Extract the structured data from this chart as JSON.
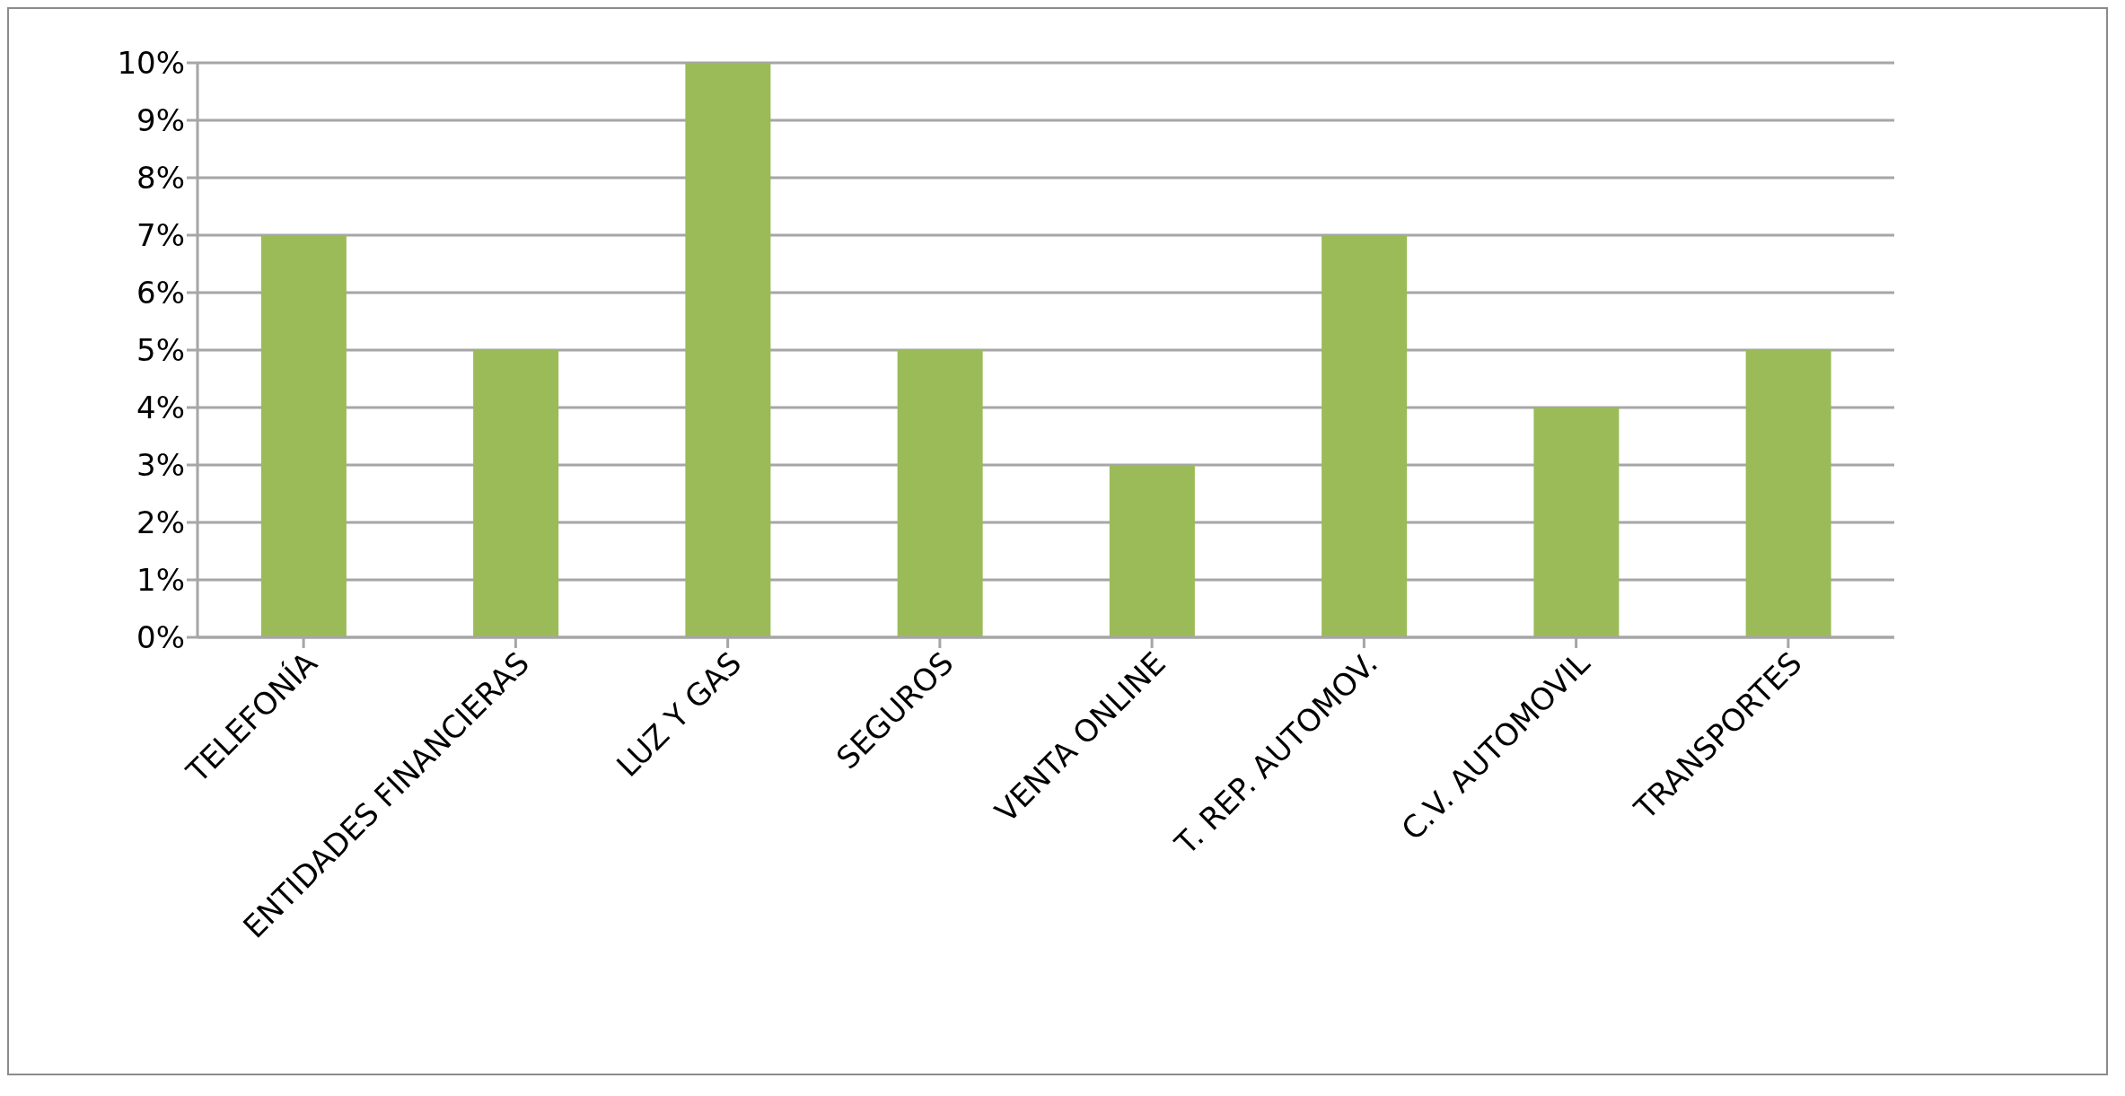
{
  "chart_data": {
    "type": "bar",
    "categories": [
      "TELEFONÍA",
      "ENTIDADES FINANCIERAS",
      "LUZ Y GAS",
      "SEGUROS",
      "VENTA ONLINE",
      "T. REP. AUTOMOV.",
      "C.V. AUTOMOVIL",
      "TRANSPORTES"
    ],
    "values": [
      7,
      5,
      10,
      5,
      3,
      7,
      4,
      5
    ],
    "color": "#9bbb59",
    "ylim": [
      0,
      10
    ],
    "yticks": [
      {
        "value": 0,
        "label": "0%"
      },
      {
        "value": 1,
        "label": "1%"
      },
      {
        "value": 2,
        "label": "2%"
      },
      {
        "value": 3,
        "label": "3%"
      },
      {
        "value": 4,
        "label": "4%"
      },
      {
        "value": 5,
        "label": "5%"
      },
      {
        "value": 6,
        "label": "6%"
      },
      {
        "value": 7,
        "label": "7%"
      },
      {
        "value": 8,
        "label": "8%"
      },
      {
        "value": 9,
        "label": "9%"
      },
      {
        "value": 10,
        "label": "10%"
      }
    ],
    "grid": "y"
  }
}
